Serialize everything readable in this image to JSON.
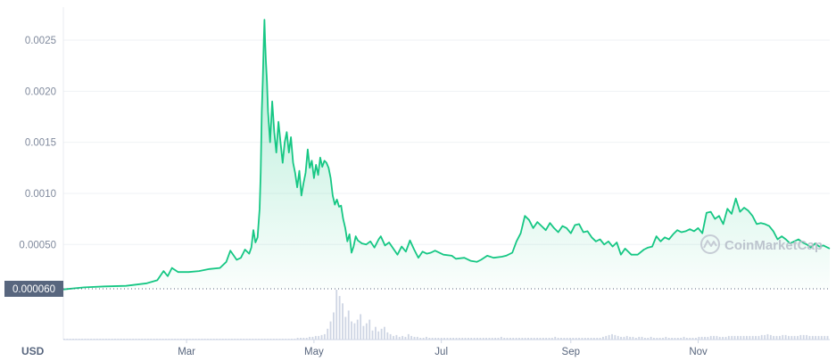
{
  "chart_data": {
    "type": "area",
    "currency_label": "USD",
    "current_price_label": "0.000060",
    "watermark": "CoinMarketCap",
    "y_ticks": [
      {
        "label": "0.00050",
        "value": 0.0005
      },
      {
        "label": "0.0010",
        "value": 0.001
      },
      {
        "label": "0.0015",
        "value": 0.0015
      },
      {
        "label": "0.0020",
        "value": 0.002
      },
      {
        "label": "0.0025",
        "value": 0.0025
      }
    ],
    "x_ticks": [
      {
        "label": "Mar",
        "x": 59
      },
      {
        "label": "May",
        "x": 120
      },
      {
        "label": "Jul",
        "x": 181
      },
      {
        "label": "Sep",
        "x": 243
      },
      {
        "label": "Nov",
        "x": 304
      }
    ],
    "x_unit": "days from first shown date",
    "x_range": [
      0,
      367
    ],
    "ylim": [
      6e-05,
      0.0027
    ],
    "grid": true,
    "line_color": "#16c784",
    "series": [
      {
        "points": [
          [
            0,
            6e-05
          ],
          [
            10,
            8e-05
          ],
          [
            20,
            9e-05
          ],
          [
            30,
            9.5e-05
          ],
          [
            40,
            0.00012
          ],
          [
            45,
            0.00015
          ],
          [
            48,
            0.00024
          ],
          [
            50,
            0.00019
          ],
          [
            52,
            0.00027
          ],
          [
            55,
            0.00023
          ],
          [
            60,
            0.00023
          ],
          [
            65,
            0.00024
          ],
          [
            70,
            0.00026
          ],
          [
            75,
            0.00027
          ],
          [
            78,
            0.00033
          ],
          [
            80,
            0.00044
          ],
          [
            83,
            0.00035
          ],
          [
            85,
            0.00037
          ],
          [
            87,
            0.00045
          ],
          [
            89,
            0.00041
          ],
          [
            90,
            0.00047
          ],
          [
            91,
            0.00064
          ],
          [
            92,
            0.00052
          ],
          [
            93,
            0.00057
          ],
          [
            94,
            0.00085
          ],
          [
            94.5,
            0.0012
          ],
          [
            95,
            0.0018
          ],
          [
            95.5,
            0.0021
          ],
          [
            96,
            0.0025
          ],
          [
            96.3,
            0.0027
          ],
          [
            96.6,
            0.0025
          ],
          [
            97,
            0.0023
          ],
          [
            97.5,
            0.0021
          ],
          [
            98,
            0.0018
          ],
          [
            99,
            0.0015
          ],
          [
            100,
            0.0019
          ],
          [
            101,
            0.0016
          ],
          [
            102,
            0.0014
          ],
          [
            103,
            0.0017
          ],
          [
            104,
            0.0015
          ],
          [
            105,
            0.0013
          ],
          [
            106,
            0.0015
          ],
          [
            107,
            0.0016
          ],
          [
            108,
            0.0014
          ],
          [
            109,
            0.00155
          ],
          [
            110,
            0.0013
          ],
          [
            111,
            0.0012
          ],
          [
            112,
            0.00106
          ],
          [
            113,
            0.00122
          ],
          [
            114,
            0.00098
          ],
          [
            115,
            0.0011
          ],
          [
            116,
            0.0012
          ],
          [
            117,
            0.00143
          ],
          [
            118,
            0.00125
          ],
          [
            119,
            0.00132
          ],
          [
            120,
            0.00115
          ],
          [
            121,
            0.00128
          ],
          [
            122,
            0.00118
          ],
          [
            123,
            0.00135
          ],
          [
            124,
            0.00126
          ],
          [
            125,
            0.00132
          ],
          [
            126,
            0.0013
          ],
          [
            127,
            0.00125
          ],
          [
            128,
            0.00115
          ],
          [
            129,
            0.00098
          ],
          [
            130,
            0.00089
          ],
          [
            131,
            0.00094
          ],
          [
            132,
            0.00087
          ],
          [
            133,
            0.00088
          ],
          [
            134,
            0.00075
          ],
          [
            135,
            0.00066
          ],
          [
            136,
            0.00053
          ],
          [
            137,
            0.0006
          ],
          [
            138,
            0.00042
          ],
          [
            139,
            0.00048
          ],
          [
            140,
            0.00058
          ],
          [
            141,
            0.00054
          ],
          [
            143,
            0.00051
          ],
          [
            145,
            0.0005
          ],
          [
            147,
            0.00053
          ],
          [
            149,
            0.00047
          ],
          [
            151,
            0.00055
          ],
          [
            152,
            0.00058
          ],
          [
            154,
            0.00049
          ],
          [
            156,
            0.00052
          ],
          [
            158,
            0.00046
          ],
          [
            160,
            0.0004
          ],
          [
            162,
            0.00048
          ],
          [
            164,
            0.00043
          ],
          [
            166,
            0.00054
          ],
          [
            168,
            0.00045
          ],
          [
            170,
            0.00037
          ],
          [
            172,
            0.00043
          ],
          [
            174,
            0.00041
          ],
          [
            176,
            0.00042
          ],
          [
            178,
            0.00044
          ],
          [
            182,
            0.0004
          ],
          [
            186,
            0.00039
          ],
          [
            188,
            0.00036
          ],
          [
            192,
            0.00037
          ],
          [
            195,
            0.00034
          ],
          [
            198,
            0.00033
          ],
          [
            200,
            0.00035
          ],
          [
            203,
            0.00039
          ],
          [
            206,
            0.00037
          ],
          [
            210,
            0.00038
          ],
          [
            212,
            0.00039
          ],
          [
            215,
            0.00042
          ],
          [
            217,
            0.00053
          ],
          [
            219,
            0.00061
          ],
          [
            221,
            0.00078
          ],
          [
            223,
            0.00074
          ],
          [
            225,
            0.00066
          ],
          [
            227,
            0.00072
          ],
          [
            229,
            0.00068
          ],
          [
            231,
            0.00064
          ],
          [
            233,
            0.00071
          ],
          [
            235,
            0.00066
          ],
          [
            237,
            0.00062
          ],
          [
            239,
            0.00068
          ],
          [
            241,
            0.00066
          ],
          [
            243,
            0.00061
          ],
          [
            245,
            0.00069
          ],
          [
            247,
            0.0007
          ],
          [
            249,
            0.00062
          ],
          [
            251,
            0.00063
          ],
          [
            253,
            0.00057
          ],
          [
            255,
            0.00053
          ],
          [
            257,
            0.00055
          ],
          [
            259,
            0.0005
          ],
          [
            261,
            0.00053
          ],
          [
            263,
            0.00048
          ],
          [
            265,
            0.00052
          ],
          [
            267,
            0.0004
          ],
          [
            269,
            0.00046
          ],
          [
            272,
            0.0004
          ],
          [
            275,
            0.0004
          ],
          [
            278,
            0.00045
          ],
          [
            280,
            0.00047
          ],
          [
            282,
            0.00048
          ],
          [
            284,
            0.00058
          ],
          [
            286,
            0.00053
          ],
          [
            288,
            0.00057
          ],
          [
            290,
            0.00055
          ],
          [
            292,
            0.0006
          ],
          [
            294,
            0.00064
          ],
          [
            296,
            0.00062
          ],
          [
            298,
            0.00063
          ],
          [
            300,
            0.00065
          ],
          [
            302,
            0.00063
          ],
          [
            304,
            0.00066
          ],
          [
            306,
            0.00061
          ],
          [
            308,
            0.00081
          ],
          [
            310,
            0.00082
          ],
          [
            312,
            0.00075
          ],
          [
            314,
            0.00078
          ],
          [
            316,
            0.0007
          ],
          [
            318,
            0.00085
          ],
          [
            320,
            0.0008
          ],
          [
            322,
            0.00095
          ],
          [
            324,
            0.00082
          ],
          [
            326,
            0.00086
          ],
          [
            328,
            0.00083
          ],
          [
            330,
            0.00078
          ],
          [
            332,
            0.0007
          ],
          [
            334,
            0.00071
          ],
          [
            336,
            0.0007
          ],
          [
            338,
            0.00068
          ],
          [
            340,
            0.00063
          ],
          [
            342,
            0.00055
          ],
          [
            344,
            0.00058
          ],
          [
            346,
            0.00055
          ],
          [
            348,
            0.00051
          ],
          [
            350,
            0.00053
          ],
          [
            352,
            0.00055
          ],
          [
            354,
            0.00052
          ],
          [
            356,
            0.0005
          ],
          [
            358,
            0.00047
          ],
          [
            360,
            0.00051
          ],
          [
            362,
            0.00048
          ],
          [
            364,
            0.00049
          ],
          [
            367,
            0.00046
          ]
        ]
      }
    ]
  },
  "volume": {
    "bars": [
      1,
      1,
      1,
      1,
      1,
      1,
      1,
      1,
      1,
      1,
      1,
      1,
      1,
      1,
      1,
      1,
      1,
      1,
      1,
      1,
      1,
      1,
      1,
      1,
      1,
      1,
      1,
      1,
      1,
      1,
      1,
      1,
      1,
      1,
      1,
      1,
      1,
      1,
      1,
      1,
      1,
      1,
      1,
      1,
      1,
      1,
      1,
      1,
      1,
      1,
      1,
      1,
      1,
      1,
      1,
      1,
      1,
      1,
      1,
      1,
      1,
      1,
      1,
      1,
      1,
      1,
      1,
      1,
      1,
      1,
      1,
      1,
      1,
      1,
      1,
      1,
      1,
      1,
      2,
      2,
      2,
      2,
      3,
      3,
      4,
      4,
      5,
      6,
      12,
      20,
      30,
      55,
      48,
      40,
      25,
      32,
      20,
      18,
      22,
      28,
      15,
      18,
      22,
      10,
      14,
      9,
      12,
      14,
      8,
      6,
      4,
      5,
      3,
      4,
      3,
      6,
      4,
      3,
      3,
      2,
      2,
      3,
      2,
      2,
      2,
      2,
      2,
      2,
      2,
      2,
      2,
      2,
      2,
      2,
      2,
      2,
      2,
      2,
      2,
      2,
      2,
      2,
      2,
      2,
      2,
      2,
      3,
      2,
      2,
      2,
      2,
      2,
      2,
      2,
      2,
      2,
      2,
      2,
      2,
      2,
      2,
      2,
      2,
      2,
      3,
      2,
      2,
      2,
      2,
      2,
      2,
      2,
      2,
      2,
      2,
      2,
      2,
      2,
      2,
      2,
      3,
      4,
      5,
      6,
      5,
      4,
      3,
      3,
      4,
      3,
      3,
      2,
      3,
      3,
      2,
      2,
      3,
      2,
      2,
      2,
      2,
      3,
      2,
      2,
      2,
      2,
      2,
      3,
      2,
      2,
      2,
      2,
      3,
      3,
      3,
      3,
      4,
      4,
      4,
      3,
      3,
      3,
      4,
      4,
      4,
      4,
      4,
      4,
      4,
      4,
      4,
      4,
      4,
      5,
      5,
      6,
      5,
      4,
      4,
      4,
      5,
      5,
      4,
      4,
      4,
      4,
      5,
      5,
      5,
      4,
      4,
      4,
      4,
      4,
      4,
      4
    ]
  }
}
